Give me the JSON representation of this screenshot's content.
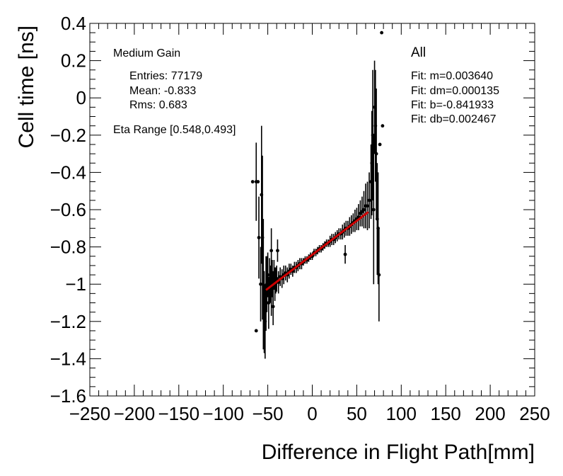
{
  "chart_data": {
    "type": "scatter",
    "title": "",
    "xlabel": "Difference in Flight Path[mm]",
    "ylabel": "Cell time [ns]",
    "xlim": [
      -250,
      250
    ],
    "ylim": [
      -1.6,
      0.4
    ],
    "x_ticks": [
      -250,
      -200,
      -150,
      -100,
      -50,
      0,
      50,
      100,
      150,
      200,
      250
    ],
    "x_tick_labels": [
      "−250",
      "−200",
      "−150",
      "−100",
      "−50",
      "0",
      "50",
      "100",
      "150",
      "200",
      "250"
    ],
    "y_ticks": [
      0.4,
      0.2,
      0,
      -0.2,
      -0.4,
      -0.6,
      -0.8,
      -1,
      -1.2,
      -1.4,
      -1.6
    ],
    "y_tick_labels": [
      "0.4",
      "0.2",
      "0",
      "−0.2",
      "−0.4",
      "−0.6",
      "−0.8",
      "−1",
      "−1.2",
      "−1.4",
      "−1.6"
    ],
    "stats_left": {
      "header": "Medium Gain",
      "entries": "Entries: 77179",
      "mean": "Mean: -0.833",
      "rms": "Rms: 0.683",
      "eta_range": "Eta Range [0.548,0.493]"
    },
    "stats_right": {
      "header": "All",
      "fit_m": "Fit: m=0.003640",
      "fit_dm": "Fit: dm=0.000135",
      "fit_b": "Fit: b=-0.841933",
      "fit_db": "Fit: db=0.002467"
    },
    "fit": {
      "slope": 0.00364,
      "intercept": -0.841933,
      "x_range": [
        -52,
        63
      ],
      "color": "#cc0000"
    },
    "series": [
      {
        "name": "data",
        "color": "#000000",
        "points": [
          [
            -67,
            -0.45,
            0.0
          ],
          [
            -63,
            -0.45,
            0.21
          ],
          [
            -61,
            -0.45,
            0.0
          ],
          [
            -63,
            -1.25,
            0.0
          ],
          [
            -60,
            -0.75,
            0.22
          ],
          [
            -58,
            -1.0,
            0.2
          ],
          [
            -57,
            -0.52,
            0.37
          ],
          [
            -56,
            -0.75,
            0.44
          ],
          [
            -55,
            -1.0,
            0.35
          ],
          [
            -54,
            -1.15,
            0.22
          ],
          [
            -53,
            -1.2,
            0.2
          ],
          [
            -52,
            -1.05,
            0.2
          ],
          [
            -51,
            -1.0,
            0.15
          ],
          [
            -50,
            -0.95,
            0.12
          ],
          [
            -49,
            -1.1,
            0.14
          ],
          [
            -48,
            -0.98,
            0.12
          ],
          [
            -47,
            -1.0,
            0.1
          ],
          [
            -46,
            -1.05,
            0.12
          ],
          [
            -45,
            -0.97,
            0.1
          ],
          [
            -44,
            -1.02,
            0.09
          ],
          [
            -43,
            -0.95,
            0.08
          ],
          [
            -42,
            -1.0,
            0.09
          ],
          [
            -41,
            -0.98,
            0.07
          ],
          [
            -40,
            -0.97,
            0.07
          ],
          [
            -38,
            -0.99,
            0.06
          ],
          [
            -36,
            -0.96,
            0.05
          ],
          [
            -34,
            -0.97,
            0.05
          ],
          [
            -32,
            -0.95,
            0.05
          ],
          [
            -30,
            -0.94,
            0.04
          ],
          [
            -28,
            -0.95,
            0.04
          ],
          [
            -26,
            -0.93,
            0.04
          ],
          [
            -24,
            -0.92,
            0.03
          ],
          [
            -22,
            -0.93,
            0.03
          ],
          [
            -20,
            -0.91,
            0.03
          ],
          [
            -18,
            -0.91,
            0.03
          ],
          [
            -16,
            -0.9,
            0.03
          ],
          [
            -14,
            -0.89,
            0.03
          ],
          [
            -12,
            -0.89,
            0.03
          ],
          [
            -10,
            -0.88,
            0.02
          ],
          [
            -8,
            -0.87,
            0.02
          ],
          [
            -6,
            -0.87,
            0.02
          ],
          [
            -4,
            -0.86,
            0.02
          ],
          [
            -2,
            -0.85,
            0.02
          ],
          [
            0,
            -0.85,
            0.02
          ],
          [
            2,
            -0.83,
            0.02
          ],
          [
            4,
            -0.83,
            0.02
          ],
          [
            6,
            -0.82,
            0.02
          ],
          [
            8,
            -0.81,
            0.02
          ],
          [
            10,
            -0.81,
            0.02
          ],
          [
            12,
            -0.8,
            0.02
          ],
          [
            14,
            -0.79,
            0.02
          ],
          [
            16,
            -0.78,
            0.02
          ],
          [
            18,
            -0.78,
            0.02
          ],
          [
            20,
            -0.77,
            0.03
          ],
          [
            22,
            -0.76,
            0.03
          ],
          [
            24,
            -0.76,
            0.03
          ],
          [
            26,
            -0.75,
            0.03
          ],
          [
            28,
            -0.74,
            0.03
          ],
          [
            30,
            -0.73,
            0.03
          ],
          [
            32,
            -0.73,
            0.03
          ],
          [
            34,
            -0.72,
            0.04
          ],
          [
            36,
            -0.71,
            0.04
          ],
          [
            38,
            -0.7,
            0.04
          ],
          [
            40,
            -0.7,
            0.04
          ],
          [
            42,
            -0.69,
            0.05
          ],
          [
            44,
            -0.68,
            0.05
          ],
          [
            46,
            -0.67,
            0.05
          ],
          [
            48,
            -0.66,
            0.06
          ],
          [
            50,
            -0.65,
            0.06
          ],
          [
            52,
            -0.64,
            0.07
          ],
          [
            54,
            -0.62,
            0.07
          ],
          [
            56,
            -0.61,
            0.08
          ],
          [
            58,
            -0.6,
            0.1
          ],
          [
            60,
            -0.58,
            0.12
          ],
          [
            62,
            -0.58,
            0.13
          ],
          [
            64,
            -0.55,
            0.15
          ],
          [
            66,
            -0.45,
            0.2
          ],
          [
            67,
            -0.35,
            0.28
          ],
          [
            68,
            -0.2,
            0.35
          ],
          [
            69,
            -0.6,
            0.4
          ],
          [
            70,
            -0.05,
            0.25
          ],
          [
            71,
            -0.15,
            0.3
          ],
          [
            72,
            -0.3,
            0.35
          ],
          [
            73,
            -0.65,
            0.3
          ],
          [
            74,
            -0.7,
            0.3
          ],
          [
            75,
            -0.95,
            0.25
          ],
          [
            76,
            -0.25,
            0.0
          ],
          [
            78,
            0.35,
            0.0
          ],
          [
            79,
            -0.15,
            0.0
          ],
          [
            37,
            -0.84,
            0.05
          ],
          [
            -44,
            -1.12,
            0.1
          ],
          [
            -46,
            -0.82,
            0.12
          ],
          [
            -39,
            -0.82,
            0.06
          ]
        ]
      }
    ]
  }
}
